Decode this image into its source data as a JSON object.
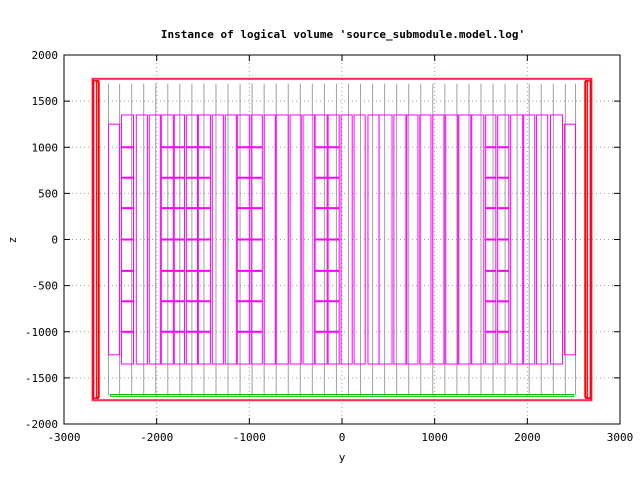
{
  "chart_data": {
    "type": "line",
    "title": "Instance of logical volume 'source_submodule.model.log'",
    "xlabel": "y",
    "ylabel": "z",
    "xlim": [
      -3000,
      3000
    ],
    "ylim": [
      -2000,
      2000
    ],
    "xticks": [
      -3000,
      -2000,
      -1000,
      0,
      1000,
      2000,
      3000
    ],
    "yticks": [
      -2000,
      -1500,
      -1000,
      -500,
      0,
      500,
      1000,
      1500,
      2000
    ],
    "xtick_labels": [
      "-3000",
      "-2000",
      "-1000",
      "0",
      "1000",
      "2000",
      "3000"
    ],
    "ytick_labels": [
      "-2000",
      "-1500",
      "-1000",
      "-500",
      "0",
      "500",
      "1000",
      "1500",
      "2000"
    ],
    "grid": true,
    "colors": {
      "outer": "#ffa040",
      "envelope": "#ff0080",
      "wall": "#ff0000",
      "module": "#ff00ff",
      "frame": "#a0a0a0",
      "base": "#00c000"
    },
    "series": [
      {
        "role": "outer",
        "rects": [
          [
            -2700,
            -1750,
            2700,
            1750
          ]
        ]
      },
      {
        "role": "envelope",
        "rects": [
          [
            -2690,
            -1740,
            2690,
            1740
          ]
        ]
      },
      {
        "role": "wall",
        "rects": [
          [
            -2680,
            -1720,
            -2630,
            1720
          ],
          [
            2630,
            -1720,
            2680,
            1720
          ]
        ]
      },
      {
        "role": "wall_inner",
        "rects": [
          [
            -2650,
            -1710,
            -2620,
            1710
          ],
          [
            2620,
            -1710,
            2650,
            1710
          ]
        ]
      },
      {
        "role": "base",
        "rects": [
          [
            -2500,
            -1700,
            2500,
            -1680
          ]
        ]
      },
      {
        "role": "frame",
        "ymin": -1690,
        "ymax": 1690,
        "xs": [
          -2520,
          -2400,
          -2270,
          -2140,
          -2010,
          -1880,
          -1750,
          -1620,
          -1490,
          -1360,
          -1230,
          -1100,
          -970,
          -840,
          -710,
          -580,
          -450,
          -320,
          -190,
          -60,
          70,
          200,
          330,
          460,
          590,
          720,
          850,
          980,
          1110,
          1240,
          1370,
          1500,
          1630,
          1760,
          1890,
          2020,
          2150,
          2280,
          2410,
          2520
        ]
      },
      {
        "role": "module",
        "rects": [
          [
            -2520,
            -1250,
            -2400,
            1250
          ],
          [
            -2380,
            -1350,
            -2250,
            1350
          ],
          [
            -2220,
            -1350,
            -2100,
            1350
          ],
          [
            -2080,
            -1350,
            -1960,
            1350
          ],
          [
            -1950,
            -1350,
            -1820,
            1350
          ],
          [
            -1810,
            -1350,
            -1700,
            1350
          ],
          [
            -1680,
            -1350,
            -1560,
            1350
          ],
          [
            -1550,
            -1350,
            -1420,
            1350
          ],
          [
            -1400,
            -1350,
            -1280,
            1350
          ],
          [
            -1260,
            -1350,
            -1140,
            1350
          ],
          [
            -1130,
            -1350,
            -1000,
            1350
          ],
          [
            -980,
            -1350,
            -860,
            1350
          ],
          [
            -840,
            -1350,
            -720,
            1350
          ],
          [
            -710,
            -1350,
            -580,
            1350
          ],
          [
            -560,
            -1350,
            -440,
            1350
          ],
          [
            -420,
            -1350,
            -300,
            1350
          ],
          [
            -290,
            -1350,
            -160,
            1350
          ],
          [
            -150,
            -1350,
            -30,
            1350
          ],
          [
            -10,
            -1350,
            110,
            1350
          ],
          [
            130,
            -1350,
            250,
            1350
          ],
          [
            280,
            -1350,
            400,
            1350
          ],
          [
            400,
            -1350,
            540,
            1350
          ],
          [
            560,
            -1350,
            690,
            1350
          ],
          [
            700,
            -1350,
            820,
            1350
          ],
          [
            840,
            -1350,
            960,
            1350
          ],
          [
            980,
            -1350,
            1100,
            1350
          ],
          [
            1120,
            -1350,
            1250,
            1350
          ],
          [
            1260,
            -1350,
            1390,
            1350
          ],
          [
            1400,
            -1350,
            1530,
            1350
          ],
          [
            1550,
            -1350,
            1660,
            1350
          ],
          [
            1680,
            -1350,
            1800,
            1350
          ],
          [
            1820,
            -1350,
            1950,
            1350
          ],
          [
            1960,
            -1350,
            2080,
            1350
          ],
          [
            2100,
            -1350,
            2220,
            1350
          ],
          [
            2250,
            -1350,
            2380,
            1350
          ],
          [
            2400,
            -1250,
            2520,
            1250
          ]
        ]
      },
      {
        "role": "module_dividers",
        "levels": [
          1000,
          670,
          340,
          0,
          -340,
          -670,
          -1000
        ],
        "spans": [
          [
            -2380,
            -2250
          ],
          [
            -1950,
            -1700
          ],
          [
            -1680,
            -1420
          ],
          [
            -1130,
            -860
          ],
          [
            -290,
            -30
          ],
          [
            1550,
            1660
          ],
          [
            1680,
            1800
          ]
        ]
      }
    ]
  }
}
